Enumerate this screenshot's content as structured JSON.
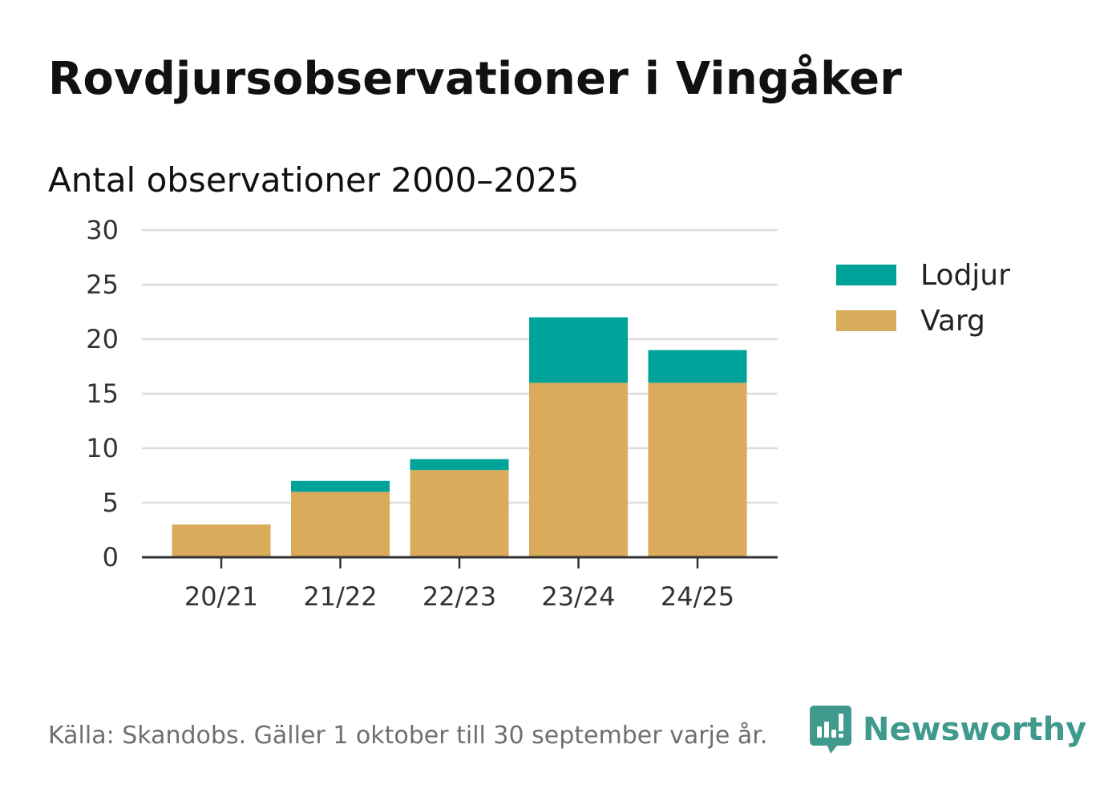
{
  "title": "Rovdjursobservationer i Vingåker",
  "subtitle": "Antal observationer 2000–2025",
  "source": "Källa: Skandobs. Gäller 1 oktober till 30 september varje år.",
  "brand": {
    "name": "Newsworthy",
    "icon": "newsworthy-logo-icon",
    "color": "#3f9a8d"
  },
  "colors": {
    "varg": "#d9ab5a",
    "lodjur": "#00a39a",
    "grid": "#dddddd",
    "axis": "#333333"
  },
  "chart_data": {
    "type": "bar",
    "stacked": true,
    "title": "Rovdjursobservationer i Vingåker",
    "subtitle": "Antal observationer 2000–2025",
    "xlabel": "",
    "ylabel": "",
    "categories": [
      "20/21",
      "21/22",
      "22/23",
      "23/24",
      "24/25"
    ],
    "series": [
      {
        "name": "Varg",
        "values": [
          3,
          6,
          8,
          16,
          16
        ],
        "color": "#d9ab5a"
      },
      {
        "name": "Lodjur",
        "values": [
          0,
          1,
          1,
          6,
          3
        ],
        "color": "#00a39a"
      }
    ],
    "ylim": [
      0,
      30
    ],
    "yticks": [
      0,
      5,
      10,
      15,
      20,
      25,
      30
    ],
    "grid": true,
    "legend": {
      "position": "right",
      "entries": [
        "Lodjur",
        "Varg"
      ]
    }
  }
}
